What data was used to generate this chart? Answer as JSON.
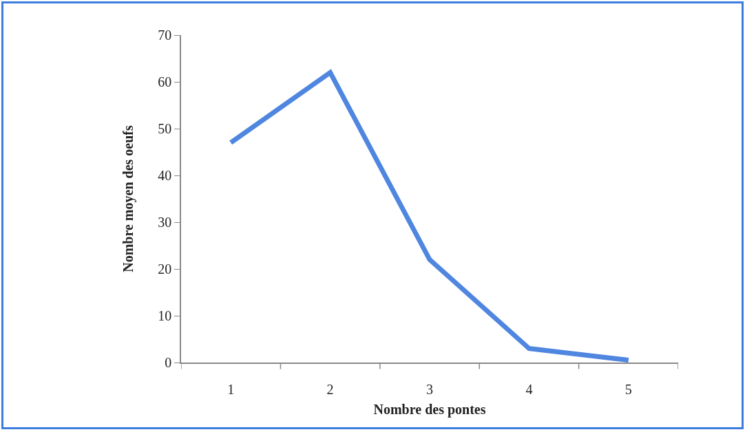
{
  "chart_data": {
    "type": "line",
    "xlabel": "Nombre des pontes",
    "ylabel": "Nombre moyen des oeufs",
    "categories": [
      "1",
      "2",
      "3",
      "4",
      "5"
    ],
    "series": [
      {
        "color": "#4f86e0",
        "values": [
          47,
          62,
          22,
          3,
          0.5
        ]
      }
    ],
    "ylim": [
      0,
      70
    ],
    "yticks": [
      0,
      10,
      20,
      30,
      40,
      50,
      60,
      70
    ],
    "grid": false,
    "marker": "none",
    "line_style": "solid"
  }
}
